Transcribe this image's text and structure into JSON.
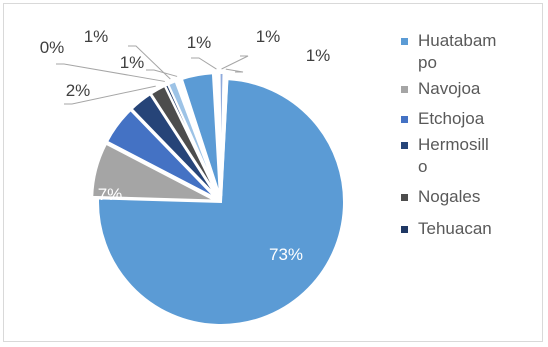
{
  "chart_data": {
    "type": "pie",
    "slices": [
      {
        "label": "Huatabampo",
        "value": 73,
        "value_label": "73%",
        "color": "#5b9bd5"
      },
      {
        "label": "Navojoa",
        "value": 7,
        "value_label": "7%",
        "color": "#a5a5a5"
      },
      {
        "label": "Etchojoa",
        "value": 5,
        "value_label": "",
        "color": "#4472c4"
      },
      {
        "label": "Hermosillo",
        "value": 3,
        "value_label": "",
        "color": "#264478"
      },
      {
        "label": "Nogales",
        "value": 2,
        "value_label": "2%",
        "color": "#4d4d4d"
      },
      {
        "label": "Tehuacan",
        "value": 0.4,
        "value_label": "0%",
        "color": "#1f3864"
      },
      {
        "label": "",
        "value": 1,
        "value_label": "1%",
        "color": "#9dc3e6"
      },
      {
        "label": "",
        "value": 0.7,
        "value_label": "1%",
        "color": "#ffffff"
      },
      {
        "label": "",
        "value": 4,
        "value_label": "",
        "color": "#5b9bd5"
      },
      {
        "label": "",
        "value": 0.7,
        "value_label": "1%",
        "color": "#ffffff"
      },
      {
        "label": "",
        "value": 0.5,
        "value_label": "1%",
        "color": "#8faadc"
      },
      {
        "label": "",
        "value": 0.5,
        "value_label": "1%",
        "color": "#ffffff"
      }
    ],
    "legend": [
      {
        "label": "Huatabam\npo",
        "color": "#5b9bd5"
      },
      {
        "label": "Navojoa",
        "color": "#a5a5a5"
      },
      {
        "label": "Etchojoa",
        "color": "#4472c4"
      },
      {
        "label": "Hermosill\no",
        "color": "#264478"
      },
      {
        "label": "Nogales",
        "color": "#4d4d4d"
      },
      {
        "label": "Tehuacan",
        "color": "#1f3864"
      }
    ],
    "legend_position": "right"
  }
}
